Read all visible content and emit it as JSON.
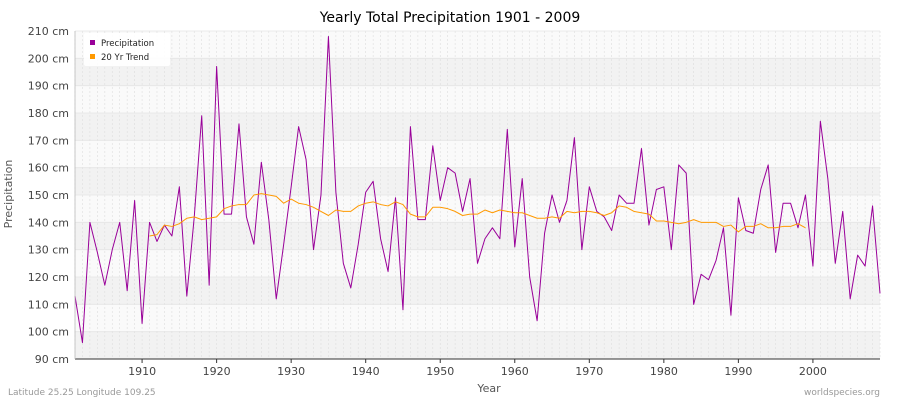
{
  "chart_data": {
    "type": "line",
    "title": "Yearly Total Precipitation 1901 - 2009",
    "xlabel": "Year",
    "ylabel": "Precipitation",
    "x_range": [
      1901,
      2009
    ],
    "ylim": [
      90,
      210
    ],
    "y_unit": "cm",
    "x_ticks": [
      1910,
      1920,
      1930,
      1940,
      1950,
      1960,
      1970,
      1980,
      1990,
      2000
    ],
    "y_ticks": [
      90,
      100,
      110,
      120,
      130,
      140,
      150,
      160,
      170,
      180,
      190,
      200,
      210
    ],
    "y_tick_labels": [
      "90 cm",
      "100 cm",
      "110 cm",
      "120 cm",
      "130 cm",
      "140 cm",
      "150 cm",
      "160 cm",
      "170 cm",
      "180 cm",
      "190 cm",
      "200 cm",
      "210 cm"
    ],
    "grid": true,
    "legend_position": "top-left",
    "series": [
      {
        "name": "Precipitation",
        "color": "#990099",
        "x_start": 1901,
        "values": [
          113,
          96,
          140,
          129,
          117,
          130,
          140,
          115,
          148,
          103,
          140,
          133,
          139,
          135,
          153,
          113,
          142,
          179,
          117,
          197,
          143,
          143,
          176,
          142,
          132,
          162,
          141,
          112,
          132,
          153,
          175,
          163,
          130,
          150,
          208,
          151,
          125,
          116,
          132,
          151,
          155,
          134,
          122,
          149,
          108,
          175,
          141,
          141,
          168,
          148,
          160,
          158,
          144,
          156,
          125,
          134,
          138,
          134,
          174,
          131,
          156,
          120,
          104,
          136,
          150,
          140,
          148,
          171,
          130,
          153,
          144,
          142,
          137,
          150,
          147,
          147,
          167,
          139,
          152,
          153,
          130,
          161,
          158,
          110,
          121,
          119,
          126,
          138,
          106,
          149,
          137,
          136,
          152,
          161,
          129,
          147,
          147,
          138,
          150,
          124,
          177,
          156,
          125,
          144,
          112,
          128,
          124,
          146,
          114
        ]
      },
      {
        "name": "20 Yr Trend",
        "color": "#ff9900",
        "x_start": 1911,
        "values": [
          135,
          135.5,
          139,
          138.5,
          139.5,
          141.5,
          142,
          141,
          141.5,
          142,
          145,
          146,
          146.5,
          146.5,
          150,
          150.5,
          150,
          149.5,
          147,
          148.5,
          147,
          146.5,
          145.5,
          144,
          142.5,
          144.5,
          144,
          144,
          146,
          147,
          147.5,
          146.5,
          146,
          147.5,
          146.5,
          143,
          142,
          142,
          145.5,
          145.5,
          145,
          144,
          142.5,
          143,
          143,
          144.5,
          143.5,
          144.5,
          144,
          143.5,
          143.5,
          142.5,
          141.5,
          141.5,
          142,
          141.5,
          144,
          143.5,
          144,
          144,
          143.5,
          142.5,
          143.5,
          146,
          145.5,
          144,
          143.5,
          143,
          140.5,
          140.5,
          140,
          139.5,
          140,
          141,
          140,
          140,
          140,
          138.5,
          139,
          136.5,
          138.5,
          138.5,
          139.5,
          138,
          138,
          138.5,
          138.5,
          139.5,
          138
        ]
      }
    ]
  },
  "footer": {
    "left_text": "Latitude 25.25 Longitude 109.25",
    "right_text": "worldspecies.org"
  }
}
